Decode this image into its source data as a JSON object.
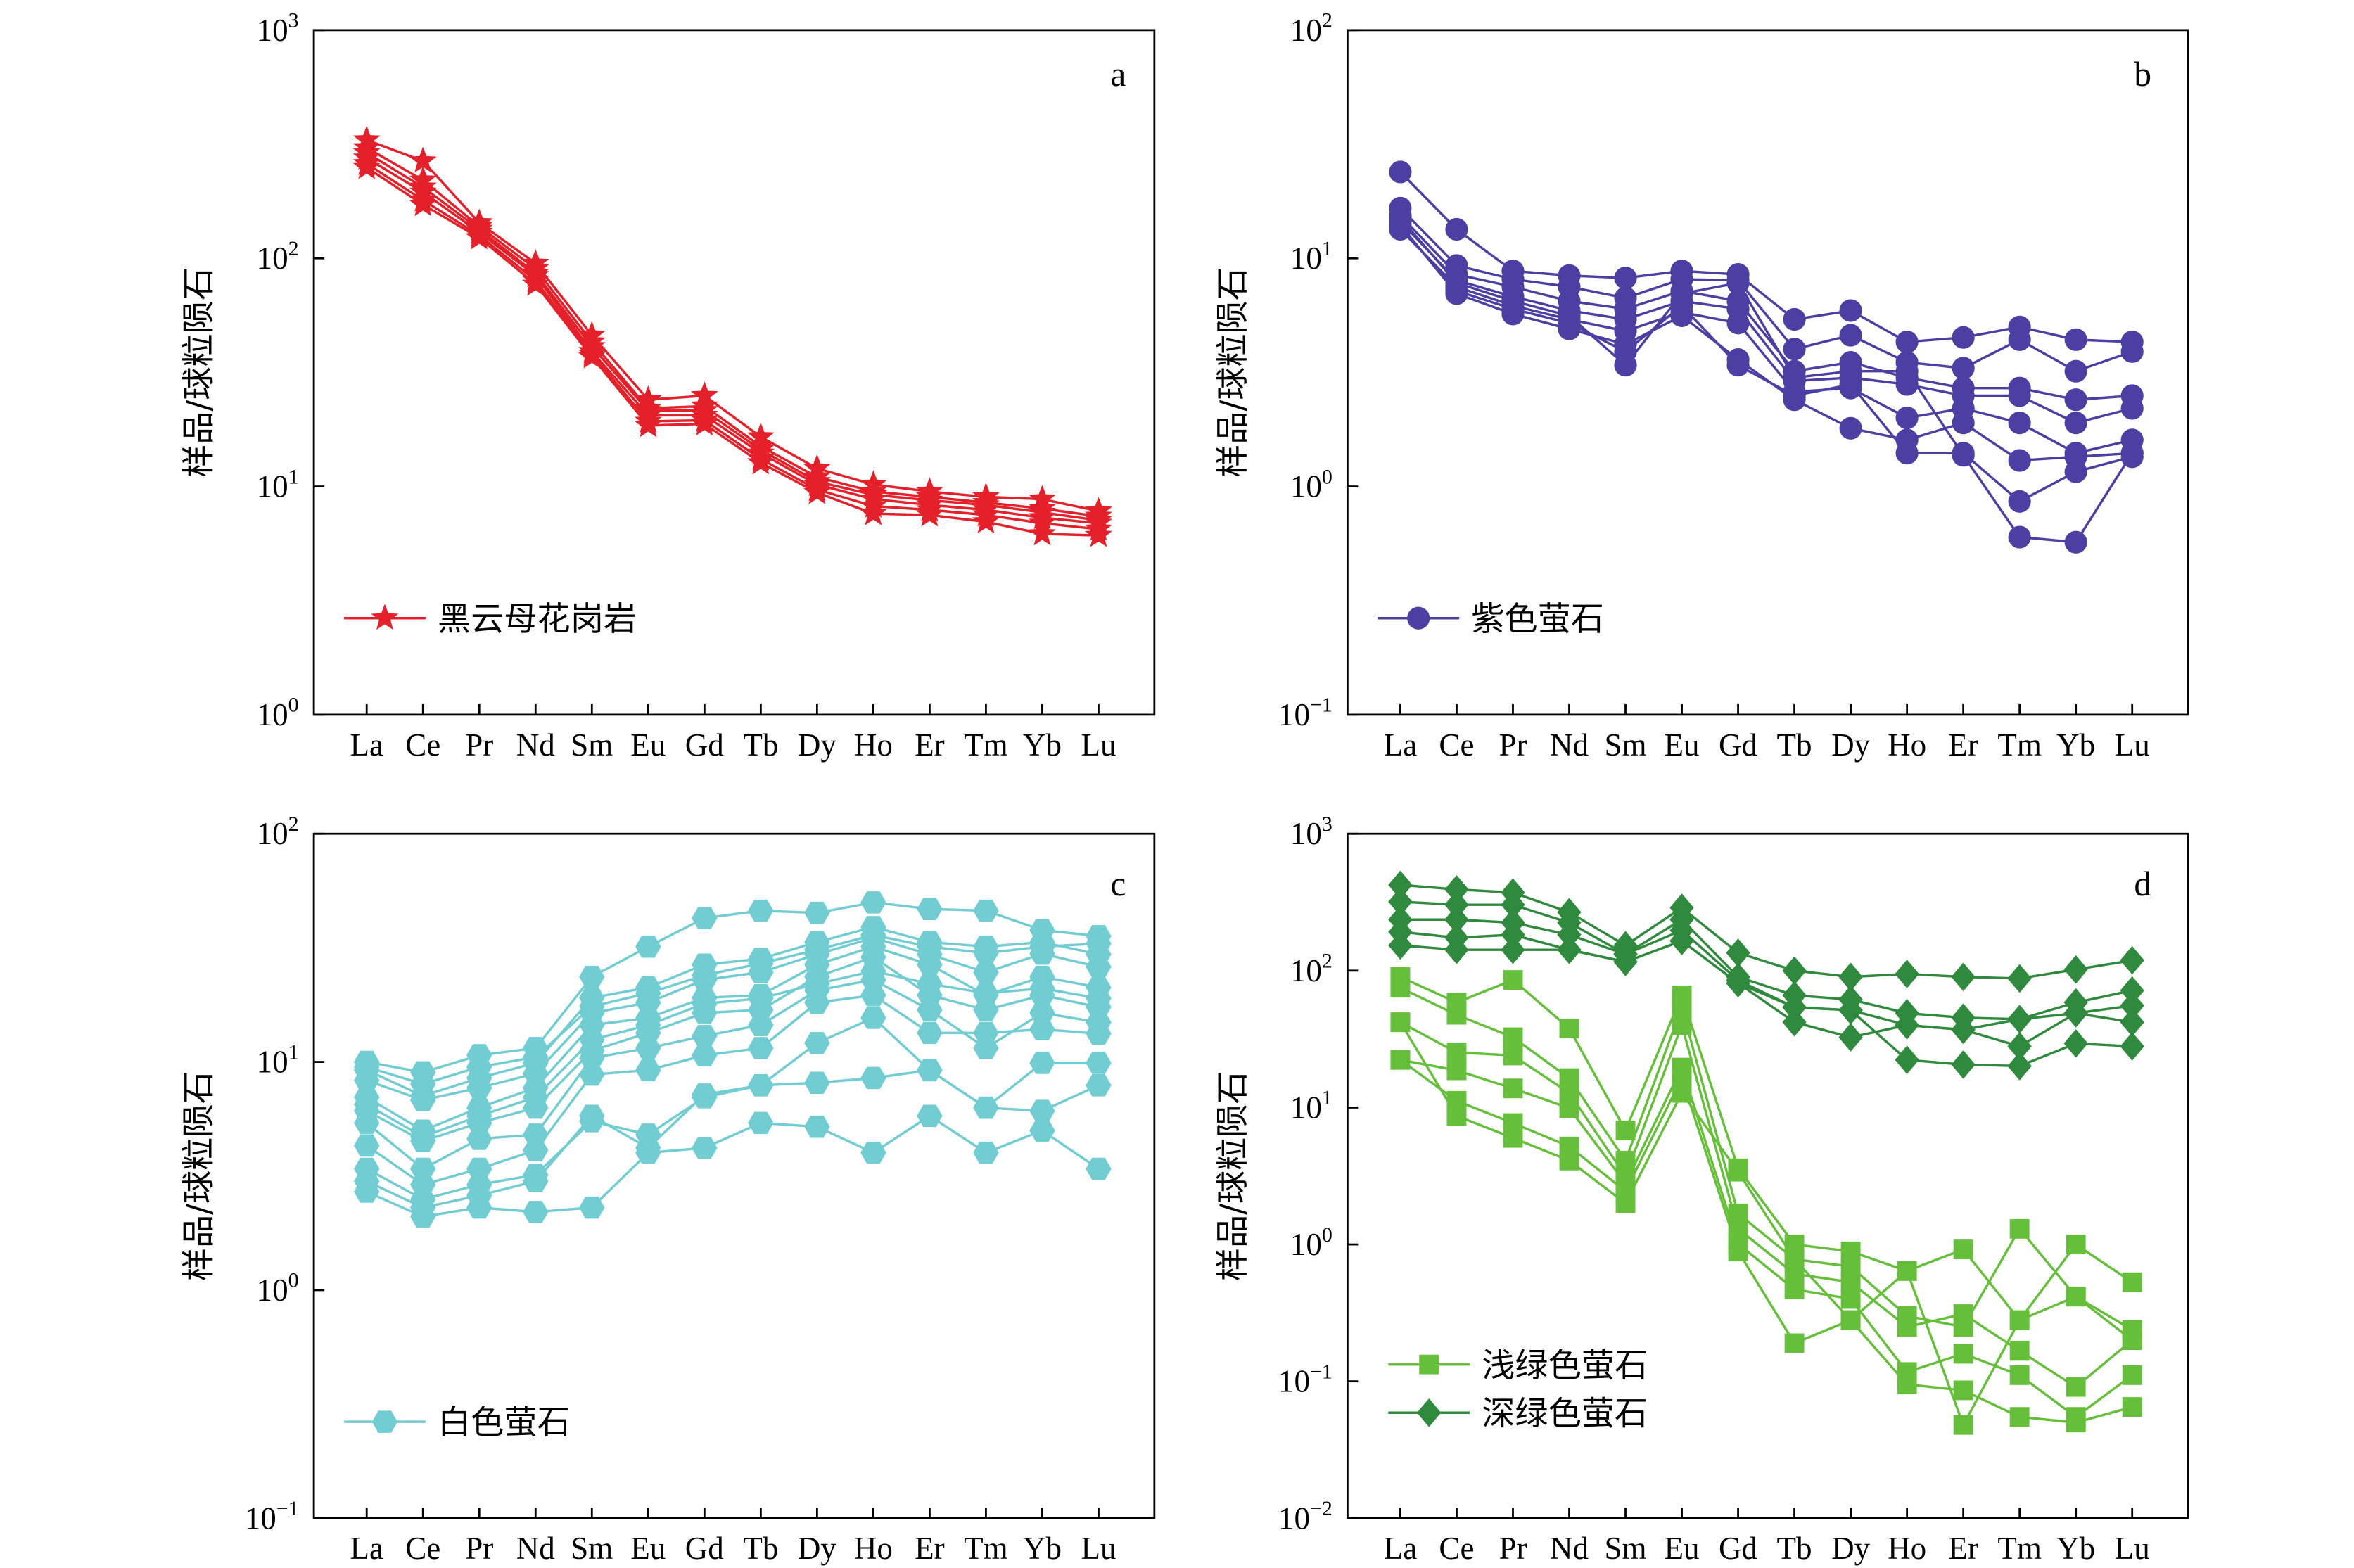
{
  "chart_data": [
    {
      "type": "line",
      "panel_label": "a",
      "categories": [
        "La",
        "Ce",
        "Pr",
        "Nd",
        "Sm",
        "Eu",
        "Gd",
        "Tb",
        "Dy",
        "Ho",
        "Er",
        "Tm",
        "Yb",
        "Lu"
      ],
      "ylabel": "样品/球粒陨石",
      "yscale": "log",
      "ylim": [
        1,
        1000
      ],
      "yticks": [
        {
          "value": 1,
          "base": "10",
          "exp": "0"
        },
        {
          "value": 10,
          "base": "10",
          "exp": "1"
        },
        {
          "value": 100,
          "base": "10",
          "exp": "2"
        },
        {
          "value": 1000,
          "base": "10",
          "exp": "3"
        }
      ],
      "grid": false,
      "legend_position": "lower-left",
      "groups": [
        {
          "name": "黑云母花岗岩",
          "color": "#e4202a",
          "marker": "star",
          "lines": [
            [
              330,
              267,
              143,
              95,
              46,
              24,
              25,
              16.5,
              12,
              10.2,
              9.5,
              9.0,
              8.8,
              7.8
            ],
            [
              305,
              220,
              138,
              90,
              43,
              22,
              22.5,
              15,
              11,
              9.5,
              9.0,
              8.5,
              8.0,
              7.4
            ],
            [
              290,
              205,
              134,
              86,
              41,
              21.5,
              21.5,
              14.5,
              10.5,
              9.2,
              8.7,
              8.3,
              7.7,
              7.1
            ],
            [
              275,
              195,
              130,
              84,
              39,
              20.5,
              20.5,
              14,
              10.2,
              8.8,
              8.3,
              7.9,
              7.3,
              6.9
            ],
            [
              260,
              180,
              126,
              80,
              38,
              19.3,
              19.5,
              13.2,
              9.7,
              8.2,
              7.9,
              7.5,
              6.9,
              6.5
            ],
            [
              250,
              172,
              123,
              77,
              37,
              18.5,
              18.8,
              12.7,
              9.4,
              7.6,
              7.5,
              7.0,
              6.2,
              6.1
            ]
          ]
        }
      ]
    },
    {
      "type": "line",
      "panel_label": "b",
      "categories": [
        "La",
        "Ce",
        "Pr",
        "Nd",
        "Sm",
        "Eu",
        "Gd",
        "Tb",
        "Dy",
        "Ho",
        "Er",
        "Tm",
        "Yb",
        "Lu"
      ],
      "ylabel": "样品/球粒陨石",
      "yscale": "log",
      "ylim": [
        0.1,
        100
      ],
      "yticks": [
        {
          "value": 0.1,
          "base": "10",
          "exp": "−1"
        },
        {
          "value": 1,
          "base": "10",
          "exp": "0"
        },
        {
          "value": 10,
          "base": "10",
          "exp": "1"
        },
        {
          "value": 100,
          "base": "10",
          "exp": "2"
        }
      ],
      "grid": false,
      "legend_position": "lower-left",
      "groups": [
        {
          "name": "紫色萤石",
          "color": "#4b3fa3",
          "marker": "circle",
          "lines": [
            [
              23.9,
              13.4,
              8.8,
              8.4,
              8.2,
              8.8,
              8.5,
              5.4,
              5.9,
              4.3,
              4.5,
              5.0,
              4.4,
              4.3
            ],
            [
              16.6,
              9.3,
              8.1,
              7.5,
              6.7,
              8.1,
              8.0,
              4.0,
              4.6,
              3.5,
              3.3,
              4.4,
              3.2,
              3.9
            ],
            [
              15.4,
              8.5,
              7.5,
              6.5,
              6.0,
              7.2,
              6.5,
              3.2,
              3.5,
              3.0,
              2.7,
              2.7,
              2.4,
              2.5
            ],
            [
              14.5,
              8.0,
              6.8,
              5.9,
              5.4,
              6.5,
              6.0,
              2.9,
              3.0,
              2.8,
              2.5,
              2.5,
              1.9,
              2.2
            ],
            [
              13.4,
              7.5,
              6.2,
              5.4,
              4.8,
              5.8,
              5.2,
              2.6,
              2.7,
              2.0,
              2.2,
              1.9,
              1.4,
              1.6
            ],
            [
              14.0,
              7.0,
              5.7,
              4.9,
              4.2,
              5.6,
              3.6,
              2.4,
              1.8,
              1.6,
              1.9,
              1.3,
              1.35,
              1.4
            ],
            [
              13.8,
              7.2,
              6.0,
              5.2,
              3.9,
              6.2,
              3.4,
              2.5,
              2.8,
              1.4,
              1.4,
              0.86,
              1.16,
              1.35
            ],
            [
              15.0,
              7.8,
              6.5,
              5.6,
              3.4,
              7.0,
              7.8,
              3.0,
              3.2,
              3.2,
              1.37,
              0.6,
              0.57,
              1.4
            ]
          ]
        }
      ]
    },
    {
      "type": "line",
      "panel_label": "c",
      "categories": [
        "La",
        "Ce",
        "Pr",
        "Nd",
        "Sm",
        "Eu",
        "Gd",
        "Tb",
        "Dy",
        "Ho",
        "Er",
        "Tm",
        "Yb",
        "Lu"
      ],
      "ylabel": "样品/球粒陨石",
      "yscale": "log",
      "ylim": [
        0.1,
        100
      ],
      "yticks": [
        {
          "value": 0.1,
          "base": "10",
          "exp": "−1"
        },
        {
          "value": 1,
          "base": "10",
          "exp": "0"
        },
        {
          "value": 10,
          "base": "10",
          "exp": "1"
        },
        {
          "value": 100,
          "base": "10",
          "exp": "2"
        }
      ],
      "grid": false,
      "legend_position": "lower-left",
      "groups": [
        {
          "name": "白色萤石",
          "color": "#72cdd3",
          "marker": "hexagon",
          "lines": [
            [
              10.0,
              9.0,
              10.7,
              11.5,
              23.6,
              32,
              42.7,
              46,
              45,
              50,
              46.8,
              46,
              37.8,
              35.6
            ],
            [
              9.2,
              7.1,
              8.5,
              9.9,
              19.1,
              21.2,
              26.7,
              28.3,
              33.5,
              39,
              33.5,
              32,
              33.5,
              29.6
            ],
            [
              8.3,
              6.8,
              7.7,
              8.9,
              16.4,
              18.2,
              22.9,
              24.7,
              29.6,
              35,
              29.6,
              24.7,
              29.8,
              26.1
            ],
            [
              7.0,
              5.0,
              6.3,
              7.7,
              14.5,
              15.6,
              19.1,
              19.6,
              26.7,
              32,
              26.7,
              19.6,
              23.6,
              21.2
            ],
            [
              6.1,
              4.5,
              5.4,
              6.3,
              11.2,
              13.4,
              16.4,
              16.9,
              23.6,
              28.8,
              19.6,
              16.9,
              19.6,
              17.4
            ],
            [
              5.4,
              3.4,
              4.6,
              4.8,
              10.4,
              11.5,
              13.0,
              14.5,
              20.6,
              22.9,
              16.9,
              11.5,
              16.4,
              14.9
            ],
            [
              4.3,
              2.9,
              3.4,
              4.1,
              8.8,
              9.2,
              10.7,
              11.5,
              18.2,
              19.6,
              13.4,
              13.4,
              13.9,
              13.3
            ],
            [
              3.4,
              2.5,
              2.9,
              3.2,
              5.5,
              4.8,
              7.0,
              7.9,
              12.1,
              15.6,
              9.2,
              6.3,
              9.9,
              9.9
            ],
            [
              2.7,
              2.1,
              2.3,
              2.2,
              2.3,
              4.0,
              4.2,
              5.4,
              5.2,
              4.0,
              5.8,
              4.0,
              5.0,
              3.4
            ],
            [
              3.0,
              2.3,
              2.6,
              3.0,
              5.8,
              4.2,
              7.2,
              7.9,
              8.1,
              8.5,
              9.2,
              6.3,
              6.1,
              7.9
            ],
            [
              9.5,
              8.0,
              9.5,
              10.5,
              17.5,
              20.0,
              24.0,
              27.0,
              31.0,
              36.0,
              32.0,
              30.0,
              32.0,
              33.0
            ],
            [
              6.5,
              4.7,
              5.8,
              7.0,
              12.5,
              14.5,
              18.0,
              19.0,
              22.0,
              25.0,
              22.0,
              20.0,
              21.0,
              19.0
            ]
          ]
        }
      ]
    },
    {
      "type": "line",
      "panel_label": "d",
      "categories": [
        "La",
        "Ce",
        "Pr",
        "Nd",
        "Sm",
        "Eu",
        "Gd",
        "Tb",
        "Dy",
        "Ho",
        "Er",
        "Tm",
        "Yb",
        "Lu"
      ],
      "ylabel": "样品/球粒陨石",
      "yscale": "log",
      "ylim": [
        0.01,
        1000
      ],
      "yticks": [
        {
          "value": 0.01,
          "base": "10",
          "exp": "−2"
        },
        {
          "value": 0.1,
          "base": "10",
          "exp": "−1"
        },
        {
          "value": 1,
          "base": "10",
          "exp": "0"
        },
        {
          "value": 10,
          "base": "10",
          "exp": "1"
        },
        {
          "value": 100,
          "base": "10",
          "exp": "2"
        },
        {
          "value": 1000,
          "base": "10",
          "exp": "3"
        }
      ],
      "grid": false,
      "legend_position": "lower-left",
      "groups": [
        {
          "name": "浅绿色萤石",
          "color": "#66bf3a",
          "marker": "square",
          "lines": [
            [
              90,
              58.5,
              85.5,
              37.9,
              6.8,
              66,
              3.6,
              1.0,
              0.89,
              0.64,
              0.92,
              0.28,
              1.0,
              0.53
            ],
            [
              75,
              47.6,
              32.6,
              16.4,
              4.1,
              54,
              1.68,
              0.78,
              0.69,
              0.3,
              0.25,
              1.3,
              0.416,
              0.238
            ],
            [
              42,
              25.3,
              24,
              12.8,
              3.16,
              40,
              1.3,
              0.61,
              0.53,
              0.25,
              0.31,
              0.167,
              0.091,
              0.2
            ],
            [
              22.3,
              18.7,
              13.8,
              9.9,
              2.8,
              19.6,
              1.01,
              0.47,
              0.4,
              0.117,
              0.159,
              0.111,
              0.055,
              0.111
            ],
            [
              22.3,
              11.2,
              7.7,
              5.2,
              2.45,
              16.4,
              0.89,
              0.19,
              0.28,
              0.095,
              0.086,
              0.055,
              0.05,
              0.065
            ],
            [
              42,
              8.7,
              6.0,
              4.1,
              2.0,
              12.8,
              3.4,
              0.78,
              0.28,
              0.64,
              0.048,
              0.28,
              0.416,
              0.2
            ]
          ]
        },
        {
          "name": "深绿色萤石",
          "color": "#2f8a3d",
          "marker": "diamond",
          "lines": [
            [
              423,
              392,
              372,
              267,
              153,
              288,
              135,
              100,
              90,
              94.6,
              90,
              87.7,
              102,
              119
            ],
            [
              319,
              303,
              303,
              224,
              132,
              236,
              90,
              66,
              61.5,
              48.9,
              45.3,
              44.2,
              58.5,
              71.6
            ],
            [
              236,
              236,
              224,
              183,
              132,
              197,
              85,
              54,
              51.4,
              40,
              37,
              44.2,
              48.9,
              55.5
            ],
            [
              192,
              174,
              183,
              142,
              116,
              165,
              81,
              42,
              32.6,
              40,
              37,
              28,
              48.9,
              42
            ],
            [
              153,
              142,
              142,
              142,
              116,
              165,
              81,
              54,
              51.4,
              22.3,
              20.6,
              20.1,
              29.4,
              28
            ]
          ]
        }
      ]
    }
  ]
}
